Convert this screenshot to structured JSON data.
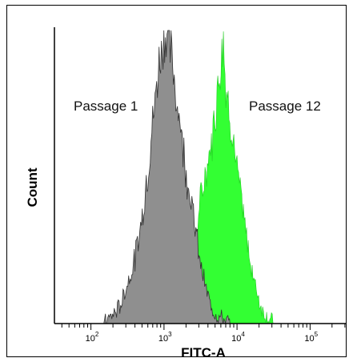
{
  "chart_data": {
    "type": "histogram",
    "xlabel": "FITC-A",
    "ylabel": "Count",
    "x_scale": "log",
    "xlim": [
      31.6,
      316227
    ],
    "x_ticks": [
      {
        "base": "10",
        "exp": "2",
        "value": 100
      },
      {
        "base": "10",
        "exp": "3",
        "value": 1000
      },
      {
        "base": "10",
        "exp": "4",
        "value": 10000
      },
      {
        "base": "10",
        "exp": "5",
        "value": 100000
      }
    ],
    "grid": false,
    "colors": {
      "passage_1": "#8f8f8f",
      "passage_12": "#33ff33"
    },
    "series": [
      {
        "name": "Passage 1",
        "x": [
          150,
          200,
          250,
          300,
          400,
          500,
          600,
          700,
          800,
          900,
          1000,
          1100,
          1250,
          1400,
          1600,
          1800,
          2000,
          2300,
          2600,
          3000,
          3500,
          4000,
          4600,
          5300,
          6000,
          7000,
          8000
        ],
        "counts": [
          0,
          3,
          6,
          12,
          22,
          36,
          52,
          68,
          82,
          93,
          98,
          99,
          92,
          82,
          72,
          62,
          52,
          44,
          35,
          24,
          15,
          9,
          5,
          3,
          2,
          1,
          0
        ]
      },
      {
        "name": "Passage 12",
        "x": [
          1200,
          1500,
          1800,
          2100,
          2500,
          3000,
          3500,
          4000,
          4500,
          5000,
          5500,
          6000,
          6500,
          7000,
          8000,
          9000,
          10000,
          11500,
          13000,
          15000,
          17500,
          20000,
          23000,
          27000,
          32000
        ],
        "counts": [
          0,
          2,
          6,
          12,
          22,
          38,
          48,
          55,
          62,
          72,
          82,
          90,
          100,
          80,
          72,
          62,
          52,
          42,
          32,
          22,
          14,
          8,
          4,
          2,
          0
        ]
      }
    ]
  }
}
